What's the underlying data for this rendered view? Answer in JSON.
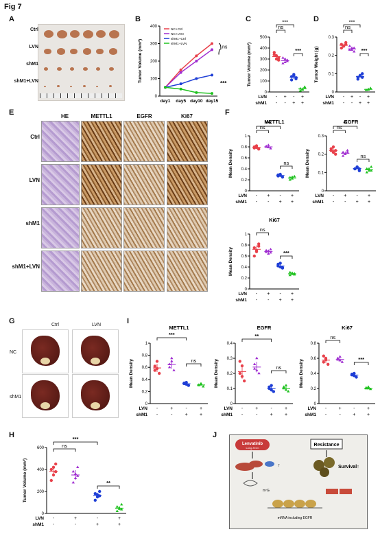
{
  "figure_title": "Fig 7",
  "panel_labels": {
    "A": "A",
    "B": "B",
    "C": "C",
    "D": "D",
    "E": "E",
    "F": "F",
    "G": "G",
    "H": "H",
    "I": "I",
    "J": "J"
  },
  "panelA": {
    "rows": [
      "Ctrl",
      "LVN",
      "shM1",
      "shM1+LVN"
    ]
  },
  "panelE": {
    "cols": [
      "HE",
      "METTL1",
      "EGFR",
      "Ki67"
    ],
    "rows": [
      "Ctrl",
      "LVN",
      "shM1",
      "shM1+LVN"
    ]
  },
  "panelG": {
    "cols": [
      "Ctrl",
      "LVN"
    ],
    "rows": [
      "NC",
      "shM1"
    ]
  },
  "panelJ": {
    "drug": "Lenvatinib",
    "drug_sub": "Long-Term",
    "resistance": "Resistance",
    "survival": "Survival↑",
    "mrna": "mRNA including EGFR",
    "m7g": "m⁷G",
    "up": "↑"
  },
  "colors": {
    "ctrl": "#e8404a",
    "lvn": "#a02fd1",
    "shm1": "#1f3fd6",
    "shm1_lvn": "#1fc21f"
  },
  "chart_data": [
    {
      "id": "B",
      "type": "line",
      "title": "",
      "xlabel": "",
      "ylabel": "Tumor Volume (mm³)",
      "categories": [
        "day1",
        "day5",
        "day10",
        "day15"
      ],
      "ylim": [
        0,
        400
      ],
      "yticks": [
        0,
        100,
        200,
        300,
        400
      ],
      "legend": "top-left",
      "series": [
        {
          "name": "NC+Ctrl",
          "values": [
            50,
            150,
            230,
            300
          ]
        },
        {
          "name": "NC+LVN",
          "values": [
            50,
            135,
            200,
            265
          ]
        },
        {
          "name": "shM1+Ctrl",
          "values": [
            50,
            70,
            100,
            120
          ]
        },
        {
          "name": "shM1+LVN",
          "values": [
            50,
            40,
            20,
            15
          ]
        }
      ],
      "annotations": [
        "ns",
        "***"
      ]
    },
    {
      "id": "C",
      "type": "scatter",
      "xlabel": "",
      "ylabel": "Tumor Volume (mm³)",
      "ylim": [
        0,
        500
      ],
      "yticks": [
        0,
        100,
        200,
        300,
        400,
        500
      ],
      "lvn": [
        "-",
        "+",
        "-",
        "+"
      ],
      "shm1": [
        "-",
        "-",
        "+",
        "+"
      ],
      "row_labels": [
        "LVN",
        "shM1"
      ],
      "groups": [
        [
          340,
          300,
          310,
          360,
          330,
          290
        ],
        [
          310,
          270,
          280,
          260,
          300,
          290
        ],
        [
          140,
          160,
          120,
          110,
          150,
          130
        ],
        [
          30,
          20,
          45,
          10,
          25,
          40
        ]
      ],
      "annotations": [
        "ns",
        "***",
        "***"
      ]
    },
    {
      "id": "D",
      "type": "scatter",
      "xlabel": "",
      "ylabel": "Tumor Weight (g)",
      "ylim": [
        0,
        0.3
      ],
      "yticks": [
        0,
        0.1,
        0.2,
        0.3
      ],
      "lvn": [
        "-",
        "+",
        "-",
        "+"
      ],
      "shm1": [
        "-",
        "-",
        "+",
        "+"
      ],
      "row_labels": [
        "LVN",
        "shM1"
      ],
      "groups": [
        [
          0.26,
          0.25,
          0.27,
          0.24,
          0.25,
          0.26
        ],
        [
          0.23,
          0.24,
          0.22,
          0.25,
          0.23,
          0.24
        ],
        [
          0.08,
          0.09,
          0.1,
          0.07,
          0.09,
          0.08
        ],
        [
          0.01,
          0.015,
          0.02,
          0.01,
          0.012,
          0.018
        ]
      ],
      "annotations": [
        "ns",
        "***",
        "***"
      ]
    },
    {
      "id": "F1",
      "type": "scatter",
      "title": "METTL1",
      "ylabel": "Mean Density",
      "ylim": [
        0,
        1.0
      ],
      "yticks": [
        0,
        0.2,
        0.4,
        0.6,
        0.8,
        1.0
      ],
      "lvn": [
        "-",
        "+",
        "-",
        "+"
      ],
      "shm1": [
        "-",
        "-",
        "+",
        "+"
      ],
      "row_labels": [
        "LVN",
        "shM1"
      ],
      "groups": [
        [
          0.78,
          0.82,
          0.76,
          0.8,
          0.79
        ],
        [
          0.8,
          0.83,
          0.77,
          0.81,
          0.79
        ],
        [
          0.27,
          0.3,
          0.25,
          0.29,
          0.28
        ],
        [
          0.24,
          0.22,
          0.26,
          0.2,
          0.25
        ]
      ],
      "annotations": [
        "ns",
        "***",
        "ns"
      ]
    },
    {
      "id": "F2",
      "type": "scatter",
      "title": "EGFR",
      "ylabel": "Mean Density",
      "ylim": [
        0,
        0.3
      ],
      "yticks": [
        0,
        0.1,
        0.2,
        0.3
      ],
      "lvn": [
        "-",
        "+",
        "-",
        "+"
      ],
      "shm1": [
        "-",
        "-",
        "+",
        "+"
      ],
      "row_labels": [
        "LVN",
        "shM1"
      ],
      "groups": [
        [
          0.22,
          0.24,
          0.2,
          0.23,
          0.21,
          0.22
        ],
        [
          0.21,
          0.2,
          0.22,
          0.19,
          0.2,
          0.21
        ],
        [
          0.12,
          0.13,
          0.11,
          0.12,
          0.13,
          0.12
        ],
        [
          0.12,
          0.11,
          0.13,
          0.1,
          0.12,
          0.11
        ]
      ],
      "annotations": [
        "ns",
        "**",
        "ns"
      ]
    },
    {
      "id": "F3",
      "type": "scatter",
      "title": "Ki67",
      "ylabel": "Mean Density",
      "ylim": [
        0,
        1.0
      ],
      "yticks": [
        0,
        0.2,
        0.4,
        0.6,
        0.8,
        1.0
      ],
      "lvn": [
        "-",
        "+",
        "-",
        "+"
      ],
      "shm1": [
        "-",
        "-",
        "+",
        "+"
      ],
      "row_labels": [
        "LVN",
        "shM1"
      ],
      "groups": [
        [
          0.75,
          0.68,
          0.82,
          0.6,
          0.7,
          0.78
        ],
        [
          0.7,
          0.64,
          0.72,
          0.67,
          0.69,
          0.66
        ],
        [
          0.45,
          0.4,
          0.38,
          0.42,
          0.47,
          0.39
        ],
        [
          0.3,
          0.27,
          0.28,
          0.25,
          0.29,
          0.26
        ]
      ],
      "annotations": [
        "ns",
        "***"
      ]
    },
    {
      "id": "I1",
      "type": "scatter",
      "title": "METTL1",
      "ylabel": "Mean Density",
      "ylim": [
        0,
        1.0
      ],
      "yticks": [
        0,
        0.2,
        0.4,
        0.6,
        0.8,
        1.0
      ],
      "lvn": [
        "-",
        "+",
        "-",
        "+"
      ],
      "shm1": [
        "-",
        "-",
        "+",
        "+"
      ],
      "row_labels": [
        "LVN",
        "shM1"
      ],
      "groups": [
        [
          0.55,
          0.7,
          0.5,
          0.62,
          0.58
        ],
        [
          0.6,
          0.75,
          0.55,
          0.65,
          0.7
        ],
        [
          0.33,
          0.35,
          0.3,
          0.34,
          0.32
        ],
        [
          0.3,
          0.32,
          0.28,
          0.31,
          0.33
        ]
      ],
      "annotations": [
        "***",
        "ns"
      ]
    },
    {
      "id": "I2",
      "type": "scatter",
      "title": "EGFR",
      "ylabel": "Mean Density",
      "ylim": [
        0,
        0.4
      ],
      "yticks": [
        0,
        0.1,
        0.2,
        0.3,
        0.4
      ],
      "lvn": [
        "-",
        "+",
        "-",
        "+"
      ],
      "shm1": [
        "-",
        "-",
        "+",
        "+"
      ],
      "row_labels": [
        "LVN",
        "shM1"
      ],
      "groups": [
        [
          0.2,
          0.25,
          0.15,
          0.28,
          0.18
        ],
        [
          0.23,
          0.3,
          0.2,
          0.26,
          0.22
        ],
        [
          0.1,
          0.12,
          0.08,
          0.11,
          0.09
        ],
        [
          0.1,
          0.12,
          0.08,
          0.11,
          0.09
        ]
      ],
      "annotations": [
        "**",
        "ns"
      ]
    },
    {
      "id": "I3",
      "type": "scatter",
      "title": "Ki67",
      "ylabel": "Mean Density",
      "ylim": [
        0,
        0.8
      ],
      "yticks": [
        0,
        0.2,
        0.4,
        0.6,
        0.8
      ],
      "lvn": [
        "-",
        "+",
        "-",
        "+"
      ],
      "shm1": [
        "-",
        "-",
        "+",
        "+"
      ],
      "row_labels": [
        "LVN",
        "shM1"
      ],
      "groups": [
        [
          0.55,
          0.6,
          0.52,
          0.63,
          0.58
        ],
        [
          0.58,
          0.62,
          0.55,
          0.6,
          0.57
        ],
        [
          0.38,
          0.4,
          0.35,
          0.39,
          0.37
        ],
        [
          0.2,
          0.22,
          0.19,
          0.21,
          0.2
        ]
      ],
      "annotations": [
        "ns",
        "***"
      ]
    },
    {
      "id": "H",
      "type": "scatter",
      "ylabel": "Tumor Volume (mm³)",
      "ylim": [
        0,
        600
      ],
      "yticks": [
        0,
        200,
        400,
        600
      ],
      "lvn": [
        "-",
        "+",
        "-",
        "+"
      ],
      "shm1": [
        "-",
        "-",
        "+",
        "+"
      ],
      "row_labels": [
        "LVN",
        "shM1"
      ],
      "groups": [
        [
          400,
          350,
          450,
          300,
          420,
          380
        ],
        [
          380,
          320,
          420,
          280,
          360,
          340
        ],
        [
          180,
          150,
          200,
          120,
          170,
          160
        ],
        [
          60,
          40,
          80,
          20,
          50,
          35
        ]
      ],
      "annotations": [
        "ns",
        "***",
        "**"
      ]
    }
  ]
}
